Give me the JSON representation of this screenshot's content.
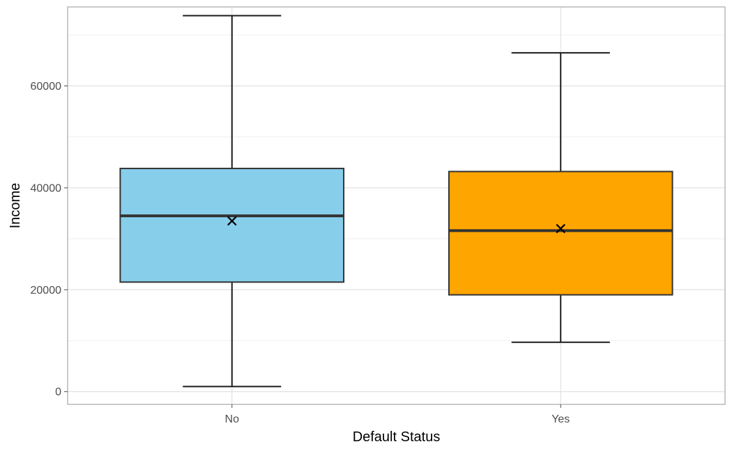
{
  "chart_data": {
    "type": "boxplot",
    "xlabel": "Default Status",
    "ylabel": "Income",
    "ylim": [
      -2500,
      75500
    ],
    "y_ticks": [
      0,
      20000,
      40000,
      60000
    ],
    "y_tick_labels": [
      "0",
      "20000",
      "40000",
      "60000"
    ],
    "y_minor_ticks": [
      10000,
      30000,
      50000,
      70000
    ],
    "grid": true,
    "categories": [
      "No",
      "Yes"
    ],
    "boxes": [
      {
        "category": "No",
        "whisker_low": 1000,
        "q1": 21500,
        "median": 34500,
        "q3": 43800,
        "whisker_high": 73800,
        "mean": 33500,
        "color": "#87CEEB"
      },
      {
        "category": "Yes",
        "whisker_low": 9700,
        "q1": 19000,
        "median": 31600,
        "q3": 43200,
        "whisker_high": 66500,
        "mean": 32000,
        "color": "#FFA500"
      }
    ]
  }
}
